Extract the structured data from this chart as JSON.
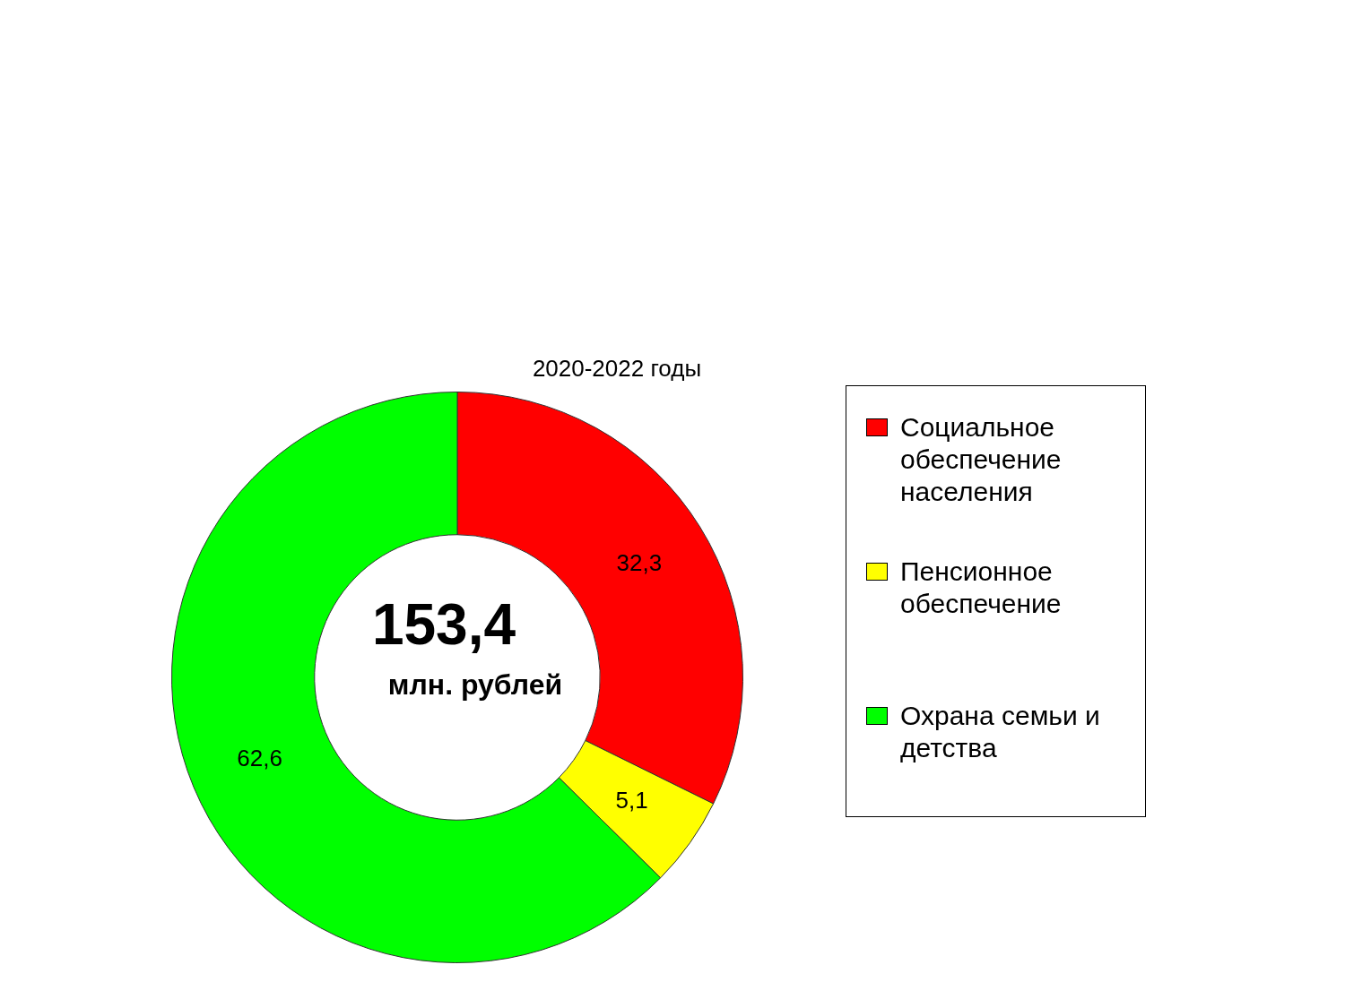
{
  "chart_data": {
    "type": "donut",
    "title": "2020-2022 годы",
    "categories": [
      "Социальное обеспечение населения",
      "Пенсионное обеспечение",
      "Охрана семьи и детства"
    ],
    "values": [
      32.3,
      5.1,
      62.6
    ],
    "colors": [
      "#ff0000",
      "#ffff00",
      "#00ff00"
    ],
    "value_labels": [
      "32,3",
      "5,1",
      "62,6"
    ],
    "annotations": [
      "153,4",
      "млн. рублей"
    ],
    "legend": "right"
  }
}
